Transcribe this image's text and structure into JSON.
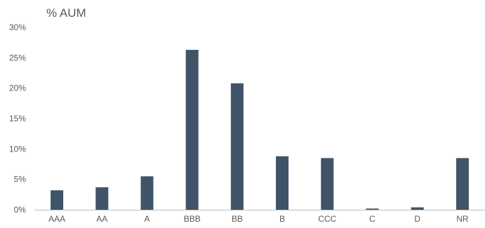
{
  "chart_data": {
    "type": "bar",
    "ylabel": "% AUM",
    "categories": [
      "AAA",
      "AA",
      "A",
      "BBB",
      "BB",
      "B",
      "CCC",
      "C",
      "D",
      "NR"
    ],
    "values": [
      3.2,
      3.7,
      5.5,
      26.3,
      20.8,
      8.8,
      8.5,
      0.2,
      0.4,
      8.5
    ],
    "ylim": [
      0,
      30
    ],
    "yticks": [
      0,
      5,
      10,
      15,
      20,
      25,
      30
    ],
    "ytick_labels": [
      "0%",
      "5%",
      "10%",
      "15%",
      "20%",
      "25%",
      "30%"
    ],
    "grid": false,
    "legend": "none",
    "bar_color": "#3f5468",
    "axis_color": "#bfbfbf",
    "text_color": "#595959"
  }
}
